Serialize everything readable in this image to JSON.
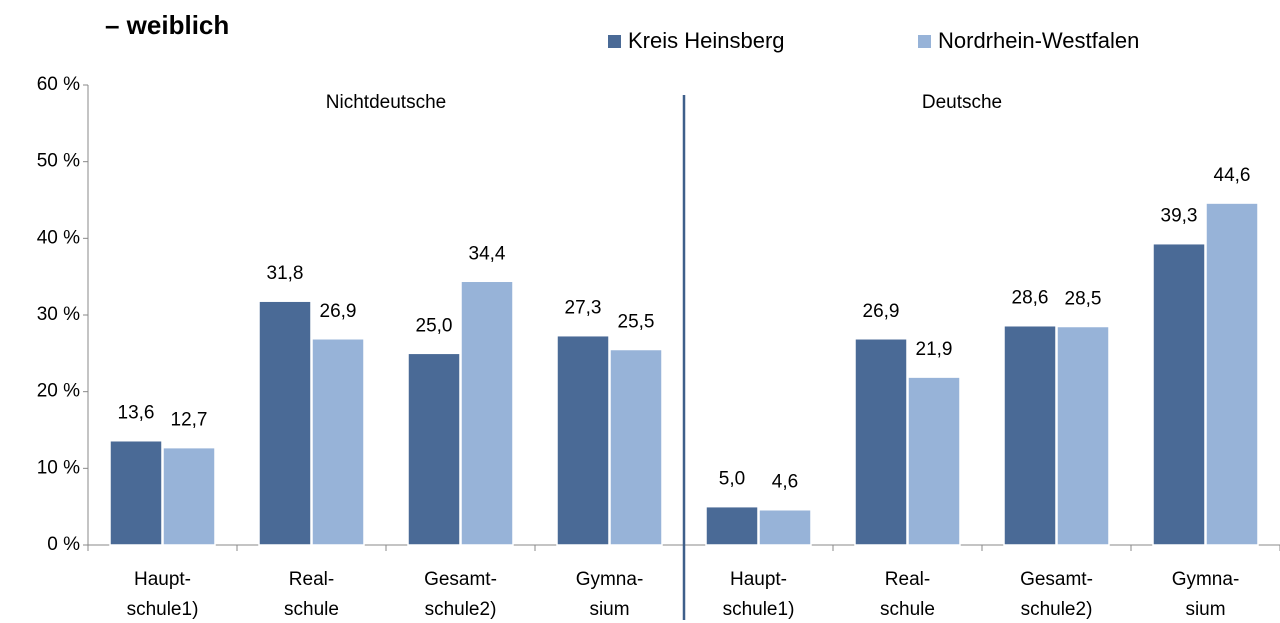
{
  "chart_data": {
    "type": "bar",
    "title": "– weiblich",
    "annotations": [
      "Nichtdeutsche",
      "Deutsche"
    ],
    "categories": [
      [
        "Haupt-",
        "schule1)"
      ],
      [
        "Real-",
        "schule"
      ],
      [
        "Gesamt-",
        "schule2)"
      ],
      [
        "Gymna-",
        "sium"
      ],
      [
        "Haupt-",
        "schule1)"
      ],
      [
        "Real-",
        "schule"
      ],
      [
        "Gesamt-",
        "schule2)"
      ],
      [
        "Gymna-",
        "sium"
      ]
    ],
    "series": [
      {
        "name": "Kreis Heinsberg",
        "color": "#4a6a96",
        "values": [
          13.6,
          31.8,
          25.0,
          27.3,
          5.0,
          26.9,
          28.6,
          39.3
        ],
        "value_labels": [
          "13,6",
          "31,8",
          "25,0",
          "27,3",
          "5,0",
          "26,9",
          "28,6",
          "39,3"
        ]
      },
      {
        "name": "Nordrhein-Westfalen",
        "color": "#97b3d8",
        "values": [
          12.7,
          26.9,
          34.4,
          25.5,
          4.6,
          21.9,
          28.5,
          44.6
        ],
        "value_labels": [
          "12,7",
          "26,9",
          "34,4",
          "25,5",
          "4,6",
          "21,9",
          "28,5",
          "44,6"
        ]
      }
    ],
    "ylim": [
      0,
      60
    ],
    "yticks": [
      {
        "value": 0,
        "label": "0 %"
      },
      {
        "value": 10,
        "label": "10 %"
      },
      {
        "value": 20,
        "label": "20 %"
      },
      {
        "value": 30,
        "label": "30 %"
      },
      {
        "value": 40,
        "label": "40 %"
      },
      {
        "value": 50,
        "label": "50 %"
      },
      {
        "value": 60,
        "label": "60 %"
      }
    ],
    "legend": "top-right"
  }
}
